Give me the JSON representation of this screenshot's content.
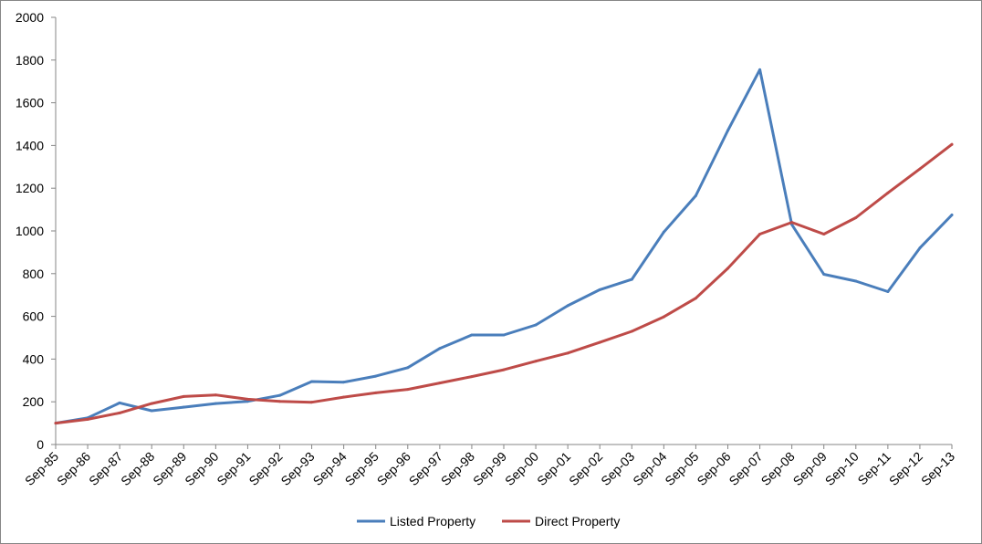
{
  "chart_data": {
    "type": "line",
    "title": "",
    "xlabel": "",
    "ylabel": "",
    "categories": [
      "Sep-85",
      "Sep-86",
      "Sep-87",
      "Sep-88",
      "Sep-89",
      "Sep-90",
      "Sep-91",
      "Sep-92",
      "Sep-93",
      "Sep-94",
      "Sep-95",
      "Sep-96",
      "Sep-97",
      "Sep-98",
      "Sep-99",
      "Sep-00",
      "Sep-01",
      "Sep-02",
      "Sep-03",
      "Sep-04",
      "Sep-05",
      "Sep-06",
      "Sep-07",
      "Sep-08",
      "Sep-09",
      "Sep-10",
      "Sep-11",
      "Sep-12",
      "Sep-13"
    ],
    "ylim": [
      0,
      2000
    ],
    "yticks": [
      0,
      200,
      400,
      600,
      800,
      1000,
      1200,
      1400,
      1600,
      1800,
      2000
    ],
    "grid": false,
    "legend_position": "bottom",
    "series": [
      {
        "name": "Listed Property",
        "color": "#4a7ebb",
        "values": [
          100,
          125,
          195,
          158,
          175,
          192,
          202,
          230,
          295,
          292,
          320,
          360,
          450,
          513,
          513,
          560,
          650,
          725,
          773,
          995,
          1165,
          1470,
          1755,
          1030,
          797,
          765,
          716,
          920,
          1075
        ]
      },
      {
        "name": "Direct Property",
        "color": "#be4b48",
        "values": [
          100,
          118,
          148,
          192,
          225,
          232,
          212,
          202,
          198,
          222,
          242,
          258,
          288,
          318,
          350,
          390,
          428,
          478,
          530,
          598,
          685,
          825,
          985,
          1040,
          985,
          1062,
          1178,
          1290,
          1405
        ]
      }
    ]
  }
}
